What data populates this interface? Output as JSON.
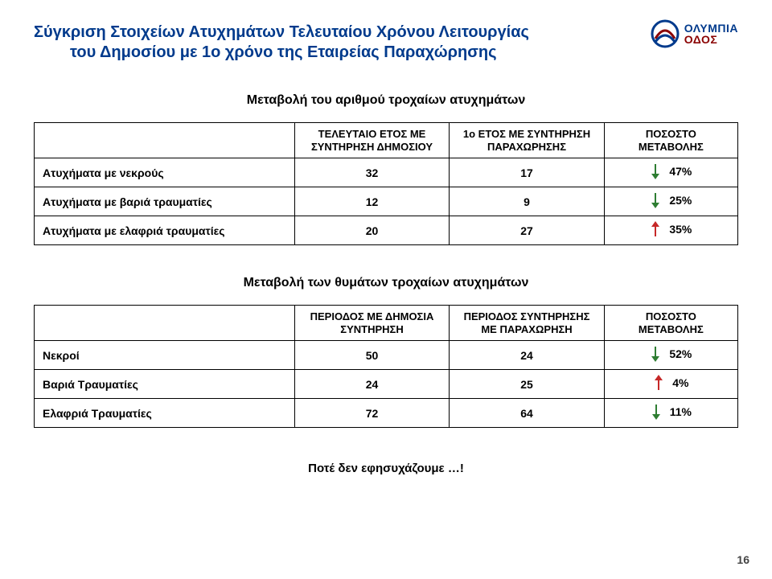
{
  "colors": {
    "title": "#003a8c",
    "logoTop": "#003a8c",
    "logoBottom": "#8a0000",
    "arrowDown": "#2e7d32",
    "arrowUp": "#c62828",
    "tableBorder": "#000000",
    "background": "#ffffff"
  },
  "header": {
    "title_line1": "Σύγκριση Στοιχείων Ατυχημάτων Τελευταίου Χρόνου Λειτουργίας",
    "title_line2": "του Δημοσίου με 1ο χρόνο της Εταιρείας Παραχώρησης",
    "logo_line1": "ΟΛΥΜΠΙΑ",
    "logo_line2": "ΟΔΟΣ"
  },
  "table1": {
    "subtitle": "Μεταβολή του αριθμού τροχαίων ατυχημάτων",
    "headers": {
      "col0": "",
      "col1": "ΤΕΛΕΥΤΑΙΟ ΕΤΟΣ ΜΕ ΣΥΝΤΗΡΗΣΗ ΔΗΜΟΣΙΟΥ",
      "col2": "1ο ΕΤΟΣ ΜΕ ΣΥΝΤΗΡΗΣΗ ΠΑΡΑΧΩΡΗΣΗΣ",
      "col3": "ΠΟΣΟΣΤΟ ΜΕΤΑΒΟΛΗΣ"
    },
    "rows": [
      {
        "label": "Ατυχήματα με νεκρούς",
        "v1": "32",
        "v2": "17",
        "pct": "47%",
        "dir": "down"
      },
      {
        "label": "Ατυχήματα με βαριά τραυματίες",
        "v1": "12",
        "v2": "9",
        "pct": "25%",
        "dir": "down"
      },
      {
        "label": "Ατυχήματα με ελαφριά τραυματίες",
        "v1": "20",
        "v2": "27",
        "pct": "35%",
        "dir": "up"
      }
    ]
  },
  "table2": {
    "subtitle": "Μεταβολή των θυμάτων τροχαίων ατυχημάτων",
    "headers": {
      "col0": "",
      "col1": "ΠΕΡΙΟΔΟΣ ΜΕ ΔΗΜΟΣΙΑ ΣΥΝΤΗΡΗΣΗ",
      "col2": "ΠΕΡΙΟΔΟΣ ΣΥΝΤΗΡΗΣΗΣ ΜΕ ΠΑΡΑΧΩΡΗΣΗ",
      "col3": "ΠΟΣΟΣΤΟ ΜΕΤΑΒΟΛΗΣ"
    },
    "rows": [
      {
        "label": "Νεκροί",
        "v1": "50",
        "v2": "24",
        "pct": "52%",
        "dir": "down"
      },
      {
        "label": "Βαριά Τραυματίες",
        "v1": "24",
        "v2": "25",
        "pct": "4%",
        "dir": "up"
      },
      {
        "label": "Ελαφριά Τραυματίες",
        "v1": "72",
        "v2": "64",
        "pct": "11%",
        "dir": "down"
      }
    ]
  },
  "footer": "Ποτέ δεν εφησυχάζουμε …!",
  "page_number": "16"
}
